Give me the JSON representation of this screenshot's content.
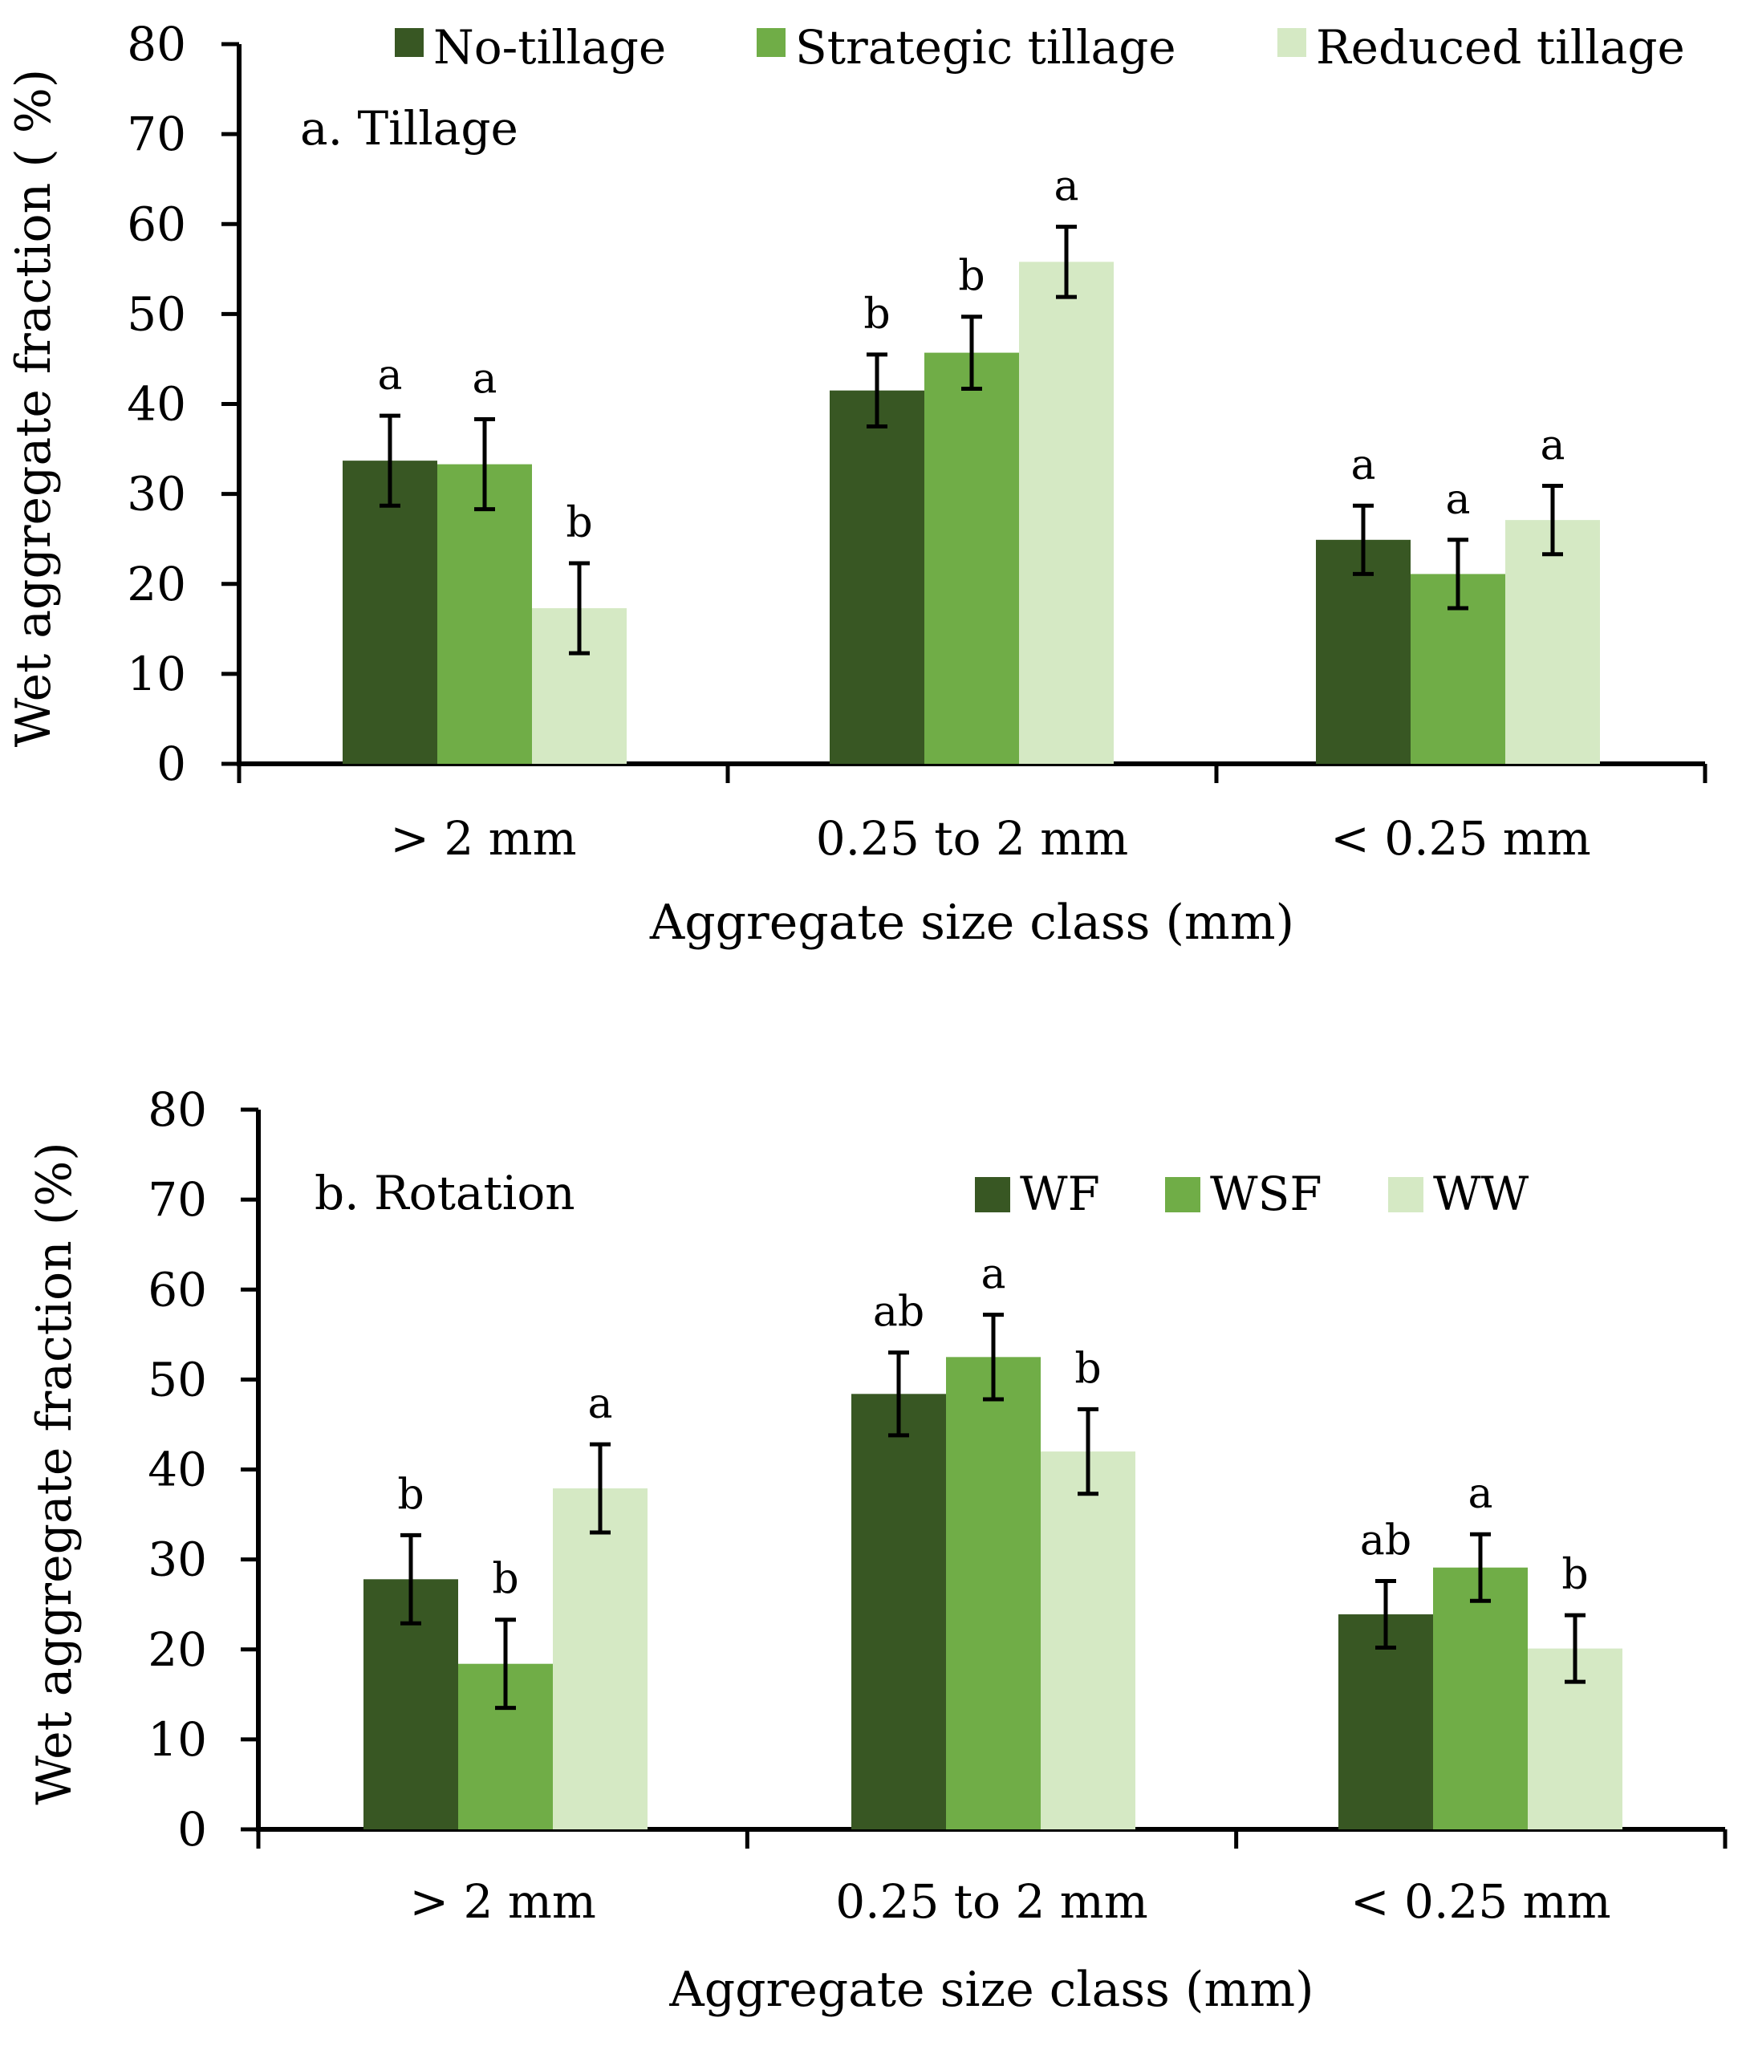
{
  "chart_data": [
    {
      "type": "bar",
      "panel_label": "a. Tillage",
      "xlabel": "Aggregate size class (mm)",
      "ylabel": "Wet aggregate fraction ( %)",
      "ylim": [
        0,
        80
      ],
      "yticks": [
        0,
        10,
        20,
        30,
        40,
        50,
        60,
        70,
        80
      ],
      "categories": [
        "> 2 mm",
        "0.25 to 2 mm",
        "< 0.25 mm"
      ],
      "legend_position": "top",
      "series": [
        {
          "name": "No-tillage",
          "color": "#385723",
          "values": [
            33.7,
            41.5,
            24.9
          ],
          "errors": [
            5.0,
            4.0,
            3.8
          ],
          "letters": [
            "a",
            "b",
            "a"
          ]
        },
        {
          "name": "Strategic tillage",
          "color": "#70AD47",
          "values": [
            33.3,
            45.7,
            21.1
          ],
          "errors": [
            5.0,
            4.0,
            3.8
          ],
          "letters": [
            "a",
            "b",
            "a"
          ]
        },
        {
          "name": "Reduced tillage",
          "color": "#D5E9C4",
          "values": [
            17.3,
            55.8,
            27.1
          ],
          "errors": [
            5.0,
            3.9,
            3.8
          ],
          "letters": [
            "b",
            "a",
            "a"
          ]
        }
      ]
    },
    {
      "type": "bar",
      "panel_label": "b. Rotation",
      "xlabel": "Aggregate size class (mm)",
      "ylabel": "Wet aggregate fraction (%)",
      "ylim": [
        0,
        80
      ],
      "yticks": [
        0,
        10,
        20,
        30,
        40,
        50,
        60,
        70,
        80
      ],
      "categories": [
        "> 2 mm",
        "0.25 to 2 mm",
        "< 0.25 mm"
      ],
      "legend_position": "top-right",
      "series": [
        {
          "name": "WF",
          "color": "#385723",
          "values": [
            27.8,
            48.4,
            23.9
          ],
          "errors": [
            4.9,
            4.6,
            3.7
          ],
          "letters": [
            "b",
            "ab",
            "ab"
          ]
        },
        {
          "name": "WSF",
          "color": "#70AD47",
          "values": [
            18.4,
            52.5,
            29.1
          ],
          "errors": [
            4.9,
            4.7,
            3.7
          ],
          "letters": [
            "b",
            "a",
            "a"
          ]
        },
        {
          "name": "WW",
          "color": "#D5E9C4",
          "values": [
            37.9,
            42.0,
            20.1
          ],
          "errors": [
            4.9,
            4.7,
            3.7
          ],
          "letters": [
            "a",
            "b",
            "b"
          ]
        }
      ]
    }
  ]
}
